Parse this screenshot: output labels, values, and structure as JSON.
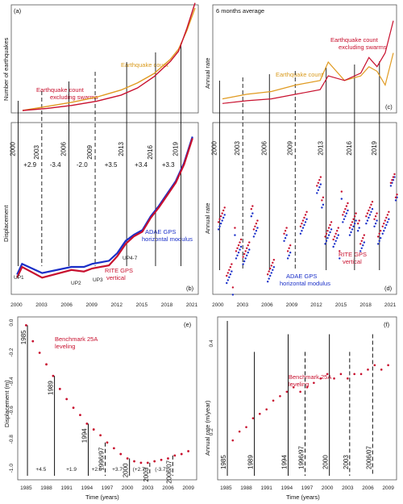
{
  "panels": {
    "a": {
      "letter": "(a)",
      "ylabel": "Number of earthquakes",
      "series": [
        {
          "name": "Earthquake count",
          "color": "#e09a20"
        },
        {
          "name": "Earthquake count\nexcluding swarms",
          "color": "#c8102e"
        }
      ]
    },
    "c": {
      "letter": "(c)",
      "title": "6 months average",
      "ylabel": "Annual rate",
      "series": [
        {
          "name": "Earthquake count",
          "color": "#e09a20"
        },
        {
          "name": "Earthquake count\nexcluding swarms",
          "color": "#c8102e"
        }
      ]
    },
    "b": {
      "letter": "(b)",
      "ylabel": "Displacement",
      "xticks": [
        "2000",
        "2003",
        "2006",
        "2009",
        "2012",
        "2015",
        "2018",
        "2021"
      ],
      "years": [
        "2000",
        "2003",
        "2006",
        "2009",
        "2013",
        "2016",
        "2019"
      ],
      "rates": [
        "+2.9",
        "-3.4",
        "-2.0",
        "+3.5",
        "+3.4",
        "+3.3"
      ],
      "up_labels": [
        "UP1",
        "UP2",
        "UP3",
        "UP4-7"
      ],
      "series": [
        {
          "name": "ADAE GPS\nhorizontal modulus",
          "color": "#1a2fc8"
        },
        {
          "name": "RITE GPS\nvertical",
          "color": "#c8102e"
        }
      ]
    },
    "d": {
      "letter": "(d)",
      "ylabel": "Annual rate",
      "xticks": [
        "2000",
        "2003",
        "2006",
        "2009",
        "2012",
        "2015",
        "2018",
        "2021"
      ],
      "years": [
        "2000",
        "2003",
        "2006",
        "2009",
        "2013",
        "2016",
        "2019"
      ],
      "series": [
        {
          "name": "ADAE GPS\nhorizontal modulus",
          "color": "#1a2fc8"
        },
        {
          "name": "RITE GPS\nvertical",
          "color": "#c8102e"
        }
      ]
    },
    "e": {
      "letter": "(e)",
      "ylabel": "Displacement (m)",
      "xlabel": "Time (years)",
      "xticks": [
        "1985",
        "1988",
        "1991",
        "1994",
        "1997",
        "2000",
        "2003",
        "2006",
        "2009"
      ],
      "yticks": [
        "0.0",
        "-0.2",
        "-0.4",
        "-0.6",
        "-0.8",
        "-1.0"
      ],
      "legend": "Benchmark 25A\nleveling",
      "events": [
        "1985",
        "1989",
        "1994",
        "1996/97",
        "2000",
        "2003",
        "2006/07"
      ],
      "rates": [
        "+4.5",
        "+1.9",
        "+2.5",
        "+3.7",
        "(+2.7)",
        "(-3.7)"
      ]
    },
    "f": {
      "letter": "(f)",
      "ylabel": "Annual rate (m/year)",
      "xlabel": "Time (years)",
      "xticks": [
        "1985",
        "1988",
        "1991",
        "1994",
        "1997",
        "2000",
        "2003",
        "2006",
        "2009"
      ],
      "yticks": [
        "0.4",
        "0.2"
      ],
      "legend": "Benchmark 25A\nleveling",
      "events": [
        "1985",
        "1989",
        "1994",
        "1996/97",
        "2000",
        "2003",
        "2006/07"
      ]
    }
  },
  "chart_data": [
    {
      "type": "line",
      "panel": "a",
      "title": "",
      "ylabel": "Number of earthquakes",
      "xlim": [
        2000,
        2021
      ],
      "series": [
        {
          "name": "Earthquake count",
          "x": [
            2000,
            2003,
            2006,
            2009,
            2012,
            2014,
            2016,
            2018,
            2019,
            2020,
            2021
          ],
          "y": [
            0,
            0.04,
            0.08,
            0.13,
            0.2,
            0.27,
            0.36,
            0.5,
            0.6,
            0.78,
            1.0
          ]
        },
        {
          "name": "Earthquake count\nexcluding swarms",
          "x": [
            2000,
            2003,
            2006,
            2009,
            2012,
            2014,
            2016,
            2018,
            2019,
            2020,
            2021
          ],
          "y": [
            0,
            0.02,
            0.05,
            0.09,
            0.15,
            0.22,
            0.33,
            0.48,
            0.58,
            0.8,
            1.05
          ]
        }
      ]
    },
    {
      "type": "line",
      "panel": "c",
      "title": "6 months average",
      "ylabel": "Annual rate",
      "xlim": [
        2000,
        2021
      ],
      "series": [
        {
          "name": "Earthquake count",
          "x": [
            2000,
            2003,
            2006,
            2009,
            2012,
            2013,
            2015,
            2017,
            2018,
            2019,
            2020,
            2021
          ],
          "y": [
            0.1,
            0.15,
            0.18,
            0.25,
            0.3,
            0.5,
            0.3,
            0.35,
            0.45,
            0.4,
            0.25,
            0.6
          ]
        },
        {
          "name": "Earthquake count\nexcluding swarms",
          "x": [
            2000,
            2003,
            2006,
            2009,
            2012,
            2013,
            2015,
            2017,
            2018,
            2019,
            2020,
            2021
          ],
          "y": [
            0.05,
            0.08,
            0.1,
            0.15,
            0.2,
            0.35,
            0.3,
            0.38,
            0.55,
            0.45,
            0.6,
            0.95
          ]
        }
      ]
    },
    {
      "type": "line",
      "panel": "b",
      "ylabel": "Displacement",
      "xlim": [
        1999.5,
        2021.5
      ],
      "series": [
        {
          "name": "ADAE GPS\nhorizontal modulus",
          "x": [
            2000,
            2000.6,
            2003,
            2006.5,
            2008,
            2009,
            2011,
            2012,
            2013,
            2014,
            2015,
            2016,
            2017,
            2018,
            2019,
            2020,
            2021
          ],
          "y": [
            0.05,
            0.12,
            0.06,
            0.1,
            0.1,
            0.12,
            0.14,
            0.19,
            0.27,
            0.31,
            0.34,
            0.43,
            0.5,
            0.58,
            0.66,
            0.78,
            0.95
          ]
        },
        {
          "name": "RITE GPS\nvertical",
          "x": [
            2000,
            2000.6,
            2003,
            2006.5,
            2008,
            2009,
            2011,
            2012,
            2013,
            2014,
            2015,
            2016,
            2017,
            2018,
            2019,
            2020,
            2021
          ],
          "y": [
            0.03,
            0.1,
            0.03,
            0.08,
            0.07,
            0.09,
            0.11,
            0.17,
            0.25,
            0.3,
            0.33,
            0.42,
            0.49,
            0.57,
            0.65,
            0.77,
            0.94
          ]
        }
      ]
    },
    {
      "type": "scatter",
      "panel": "d",
      "ylabel": "Annual rate",
      "xlim": [
        1999.5,
        2021.5
      ],
      "series": [
        {
          "name": "ADAE GPS\nhorizontal modulus",
          "x": [
            2000,
            2001,
            2002,
            2003,
            2004,
            2006,
            2008,
            2010,
            2012,
            2013,
            2014,
            2015,
            2016,
            2017,
            2018,
            2019,
            2020,
            2021
          ],
          "y": [
            0.5,
            0.05,
            0.3,
            0.2,
            0.45,
            0.1,
            0.3,
            0.45,
            0.65,
            0.4,
            0.3,
            0.55,
            0.4,
            0.35,
            0.5,
            0.4,
            0.45,
            0.7
          ]
        },
        {
          "name": "RITE GPS\nvertical",
          "x": [
            2000,
            2001,
            2002,
            2003,
            2004,
            2006,
            2008,
            2010,
            2012,
            2013,
            2014,
            2015,
            2016,
            2017,
            2018,
            2019,
            2020,
            2021
          ],
          "y": [
            0.55,
            0.1,
            0.35,
            0.25,
            0.5,
            0.15,
            0.35,
            0.5,
            0.7,
            0.45,
            0.35,
            0.6,
            0.45,
            0.4,
            0.55,
            0.45,
            0.5,
            0.72
          ]
        }
      ]
    },
    {
      "type": "scatter",
      "panel": "e",
      "title": "",
      "xlabel": "Time (years)",
      "ylabel": "Displacement (m)",
      "xlim": [
        1984,
        2010
      ],
      "ylim": [
        -1.05,
        0.02
      ],
      "series": [
        {
          "name": "Benchmark 25A\nleveling",
          "x": [
            1985,
            1986,
            1987,
            1988,
            1989,
            1990,
            1991,
            1992,
            1993,
            1994,
            1995,
            1996,
            1997,
            1998,
            1999,
            2000,
            2001,
            2002,
            2003,
            2004,
            2005,
            2006,
            2007,
            2008,
            2009
          ],
          "y": [
            -0.01,
            -0.12,
            -0.2,
            -0.28,
            -0.36,
            -0.45,
            -0.52,
            -0.58,
            -0.63,
            -0.69,
            -0.73,
            -0.77,
            -0.82,
            -0.86,
            -0.9,
            -0.93,
            -0.95,
            -0.96,
            -0.96,
            -0.95,
            -0.94,
            -0.93,
            -0.91,
            -0.9,
            -0.88
          ]
        }
      ]
    },
    {
      "type": "scatter",
      "panel": "f",
      "title": "",
      "xlabel": "Time (years)",
      "ylabel": "Annual rate (m/year)",
      "xlim": [
        1984,
        2010
      ],
      "series": [
        {
          "name": "Benchmark 25A\nleveling",
          "x": [
            1986,
            1987,
            1988,
            1989,
            1990,
            1991,
            1992,
            1993,
            1994,
            1995,
            1996,
            1997,
            1998,
            1999,
            2000,
            2001,
            2002,
            2003,
            2004,
            2005,
            2006,
            2007,
            2008,
            2009
          ],
          "y": [
            0.18,
            0.2,
            0.21,
            0.23,
            0.24,
            0.25,
            0.27,
            0.28,
            0.29,
            0.3,
            0.29,
            0.3,
            0.31,
            0.32,
            0.33,
            0.32,
            0.33,
            0.32,
            0.33,
            0.33,
            0.34,
            0.35,
            0.34,
            0.35
          ]
        }
      ]
    }
  ]
}
